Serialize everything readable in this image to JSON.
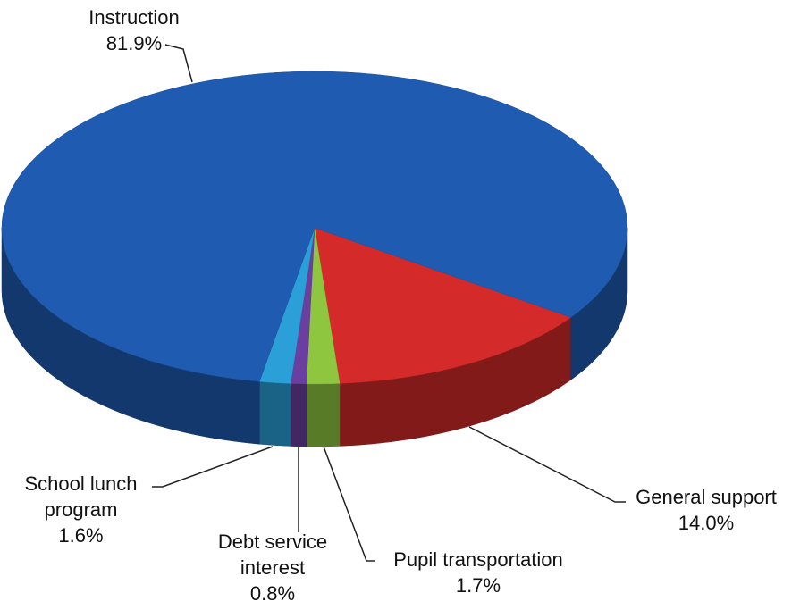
{
  "chart_data": {
    "type": "pie",
    "categories": [
      "General support",
      "Pupil transportation",
      "Debt service interest",
      "School lunch program",
      "Instruction"
    ],
    "values": [
      14.0,
      1.7,
      0.8,
      1.6,
      81.9
    ],
    "value_labels": [
      "14.0%",
      "1.7%",
      "0.8%",
      "1.6%",
      "81.9%"
    ],
    "colors": [
      "#d42a2a",
      "#8ec63f",
      "#6a3fa0",
      "#2a9fd8",
      "#1f5bb0"
    ],
    "three_d": true
  }
}
